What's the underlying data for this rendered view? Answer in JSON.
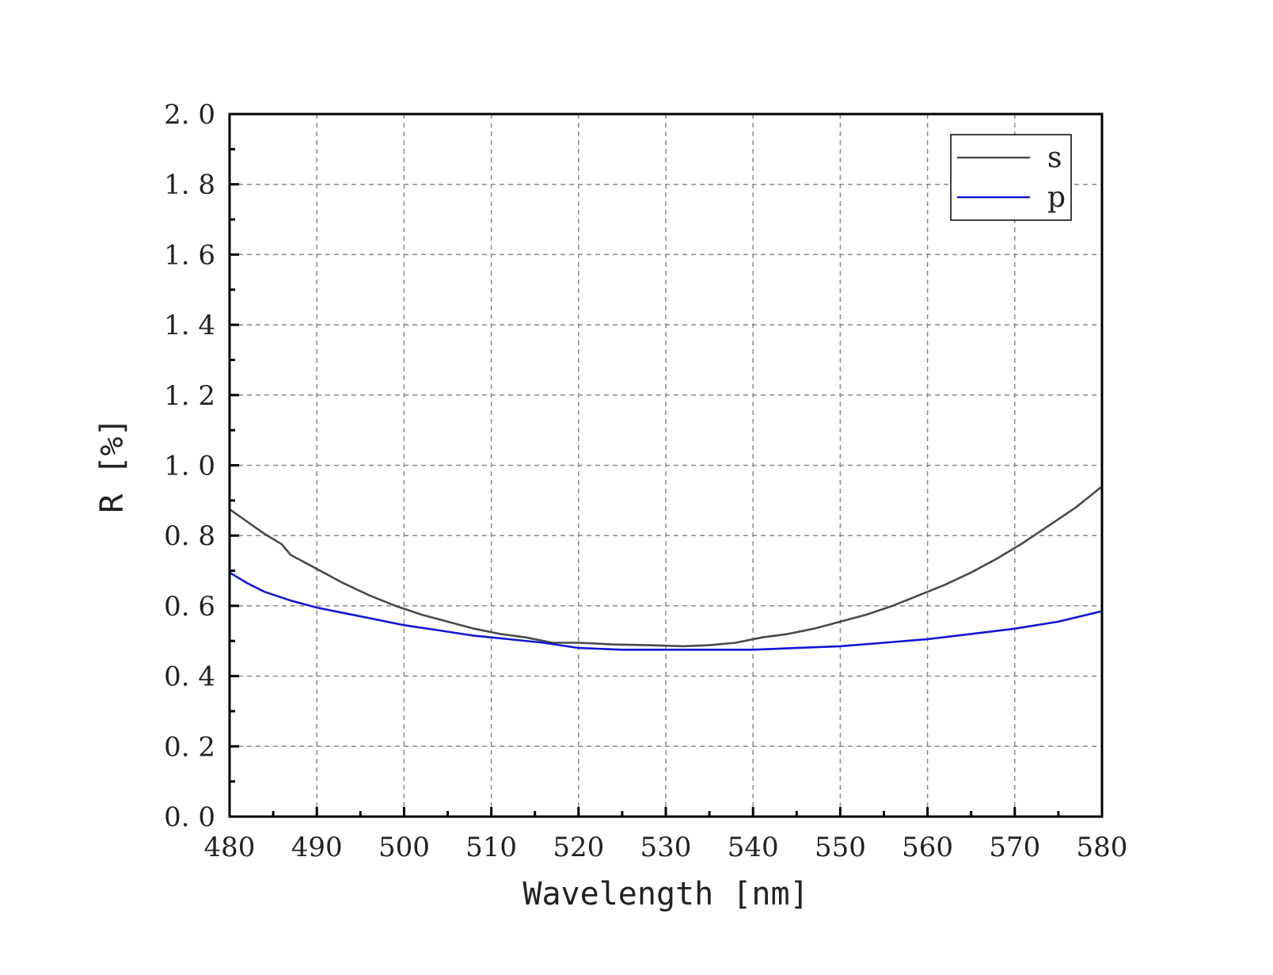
{
  "chart_data": {
    "type": "line",
    "title": "",
    "xlabel": "Wavelength [nm]",
    "ylabel": "R [%]",
    "xlim": [
      480,
      580
    ],
    "ylim": [
      0.0,
      2.0
    ],
    "x_ticks": [
      "480",
      "490",
      "500",
      "510",
      "520",
      "530",
      "540",
      "550",
      "560",
      "570",
      "580"
    ],
    "y_ticks": [
      "0. 0",
      "0. 2",
      "0. 4",
      "0. 6",
      "0. 8",
      "1. 0",
      "1. 2",
      "1. 4",
      "1. 6",
      "1. 8",
      "2. 0"
    ],
    "grid": true,
    "legend_position": "top-right",
    "series": [
      {
        "name": "s",
        "color": "#4a4a4a",
        "x": [
          480,
          482,
          484,
          486,
          487,
          490,
          493,
          496,
          499,
          502,
          505,
          508,
          511,
          514,
          517,
          520,
          524,
          528,
          532,
          535,
          538,
          541,
          544,
          547,
          550,
          553,
          556,
          559,
          562,
          565,
          568,
          571,
          574,
          577,
          580
        ],
        "y": [
          0.875,
          0.84,
          0.805,
          0.775,
          0.745,
          0.705,
          0.665,
          0.63,
          0.6,
          0.575,
          0.555,
          0.535,
          0.52,
          0.51,
          0.495,
          0.495,
          0.49,
          0.488,
          0.485,
          0.488,
          0.495,
          0.51,
          0.52,
          0.535,
          0.555,
          0.575,
          0.6,
          0.63,
          0.66,
          0.695,
          0.735,
          0.78,
          0.83,
          0.88,
          0.94
        ]
      },
      {
        "name": "p",
        "color": "#1414d6",
        "x": [
          480,
          482,
          484,
          487,
          490,
          493,
          496,
          500,
          504,
          508,
          512,
          516,
          520,
          525,
          530,
          535,
          540,
          545,
          550,
          555,
          560,
          565,
          570,
          575,
          580
        ],
        "y": [
          0.695,
          0.665,
          0.64,
          0.615,
          0.595,
          0.58,
          0.565,
          0.545,
          0.53,
          0.515,
          0.505,
          0.495,
          0.48,
          0.475,
          0.475,
          0.475,
          0.475,
          0.48,
          0.485,
          0.495,
          0.505,
          0.52,
          0.535,
          0.555,
          0.585
        ]
      }
    ]
  }
}
